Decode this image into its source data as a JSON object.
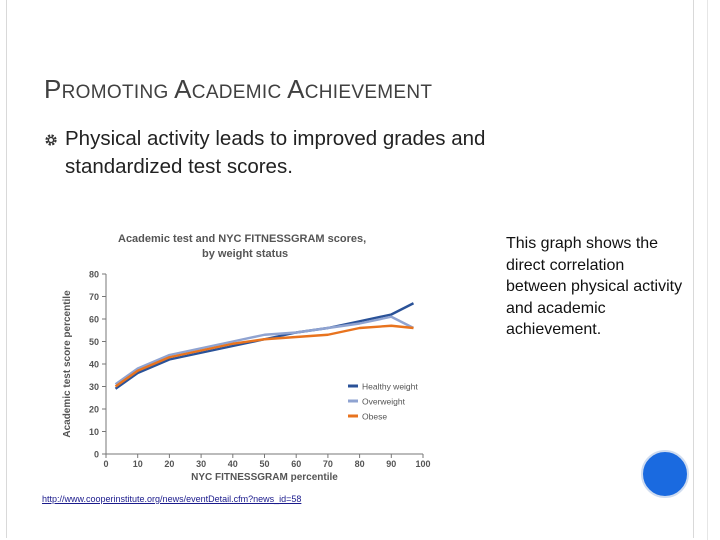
{
  "slide": {
    "title_parts": [
      {
        "text": "P",
        "size": "big"
      },
      {
        "text": "ROMOTING ",
        "size": "sm"
      },
      {
        "text": "A",
        "size": "big"
      },
      {
        "text": "CADEMIC ",
        "size": "sm"
      },
      {
        "text": "A",
        "size": "big"
      },
      {
        "text": "CHIEVEMENT",
        "size": "sm"
      }
    ],
    "bullet_icon": "gear-bullet-icon",
    "bullet": "Physical activity leads to improved grades and standardized test scores.",
    "side_text": "This graph shows the direct correlation between physical activity and academic achievement.",
    "source_link": "http://www.cooperinstitute.org/news/eventDetail.cfm?news_id=58",
    "colors": {
      "title": "#404040",
      "accent_circle": "#1a6ae0",
      "healthy": "#2a5298",
      "overweight": "#8fa3d1",
      "obese": "#e8731e"
    }
  },
  "chart_data": {
    "type": "line",
    "title": "Academic test and NYC FITNESSGRAM scores, by weight status",
    "xlabel": "NYC FITNESSGRAM percentile",
    "ylabel": "Academic test score percentile",
    "xlim": [
      0,
      100
    ],
    "ylim": [
      0,
      80
    ],
    "xticks": [
      0,
      10,
      20,
      30,
      40,
      50,
      60,
      70,
      80,
      90,
      100
    ],
    "yticks": [
      0,
      10,
      20,
      30,
      40,
      50,
      60,
      70,
      80
    ],
    "legend_position": "bottom-right",
    "grid": false,
    "x": [
      3,
      10,
      20,
      30,
      40,
      50,
      60,
      70,
      80,
      90,
      97
    ],
    "series": [
      {
        "name": "Healthy weight",
        "color": "#2a5298",
        "values": [
          29,
          36,
          42,
          45,
          48,
          51,
          54,
          56,
          59,
          62,
          67
        ]
      },
      {
        "name": "Overweight",
        "color": "#8fa3d1",
        "values": [
          31,
          38,
          44,
          47,
          50,
          53,
          54,
          56,
          58,
          61,
          56
        ]
      },
      {
        "name": "Obese",
        "color": "#e8731e",
        "values": [
          30,
          37,
          43,
          46,
          49,
          51,
          52,
          53,
          56,
          57,
          56
        ]
      }
    ]
  }
}
